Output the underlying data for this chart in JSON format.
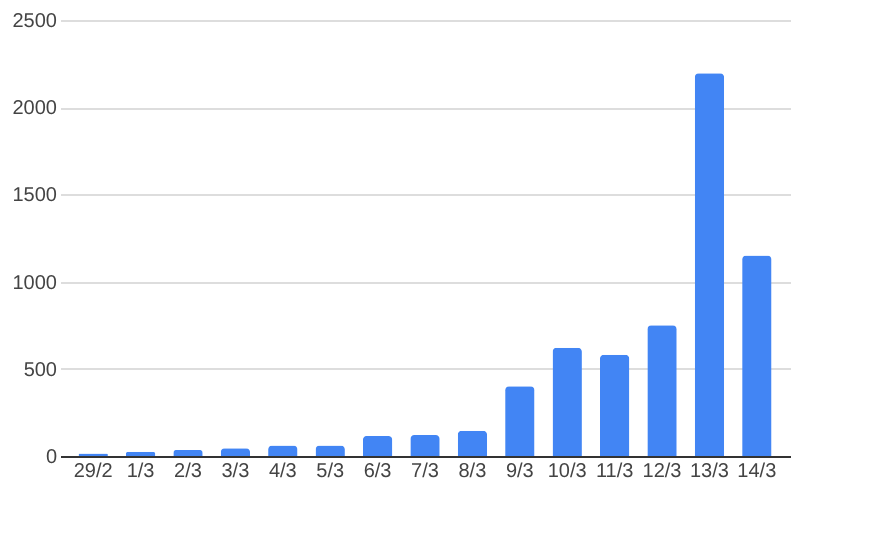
{
  "chart_data": {
    "type": "bar",
    "categories": [
      "29/2",
      "1/3",
      "2/3",
      "3/3",
      "4/3",
      "5/3",
      "6/3",
      "7/3",
      "8/3",
      "9/3",
      "10/3",
      "11/3",
      "12/3",
      "13/3",
      "14/3"
    ],
    "values": [
      15,
      25,
      35,
      45,
      60,
      60,
      115,
      120,
      145,
      400,
      620,
      580,
      750,
      2195,
      1150
    ],
    "color": "#4285f4",
    "ylim": [
      0,
      2500
    ],
    "yticks": [
      0,
      500,
      1000,
      1500,
      2000,
      2500
    ],
    "grid": "y"
  }
}
